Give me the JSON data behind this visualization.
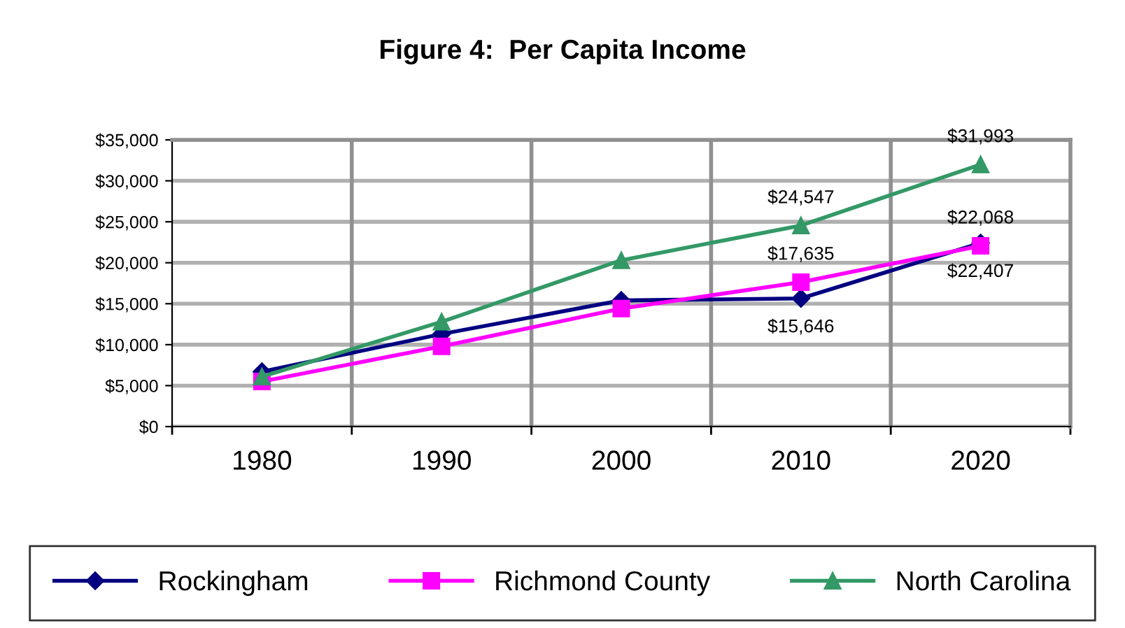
{
  "chart_data": {
    "type": "line",
    "title": "Figure 4:  Per Capita Income",
    "categories": [
      "1980",
      "1990",
      "2000",
      "2010",
      "2020"
    ],
    "series": [
      {
        "name": "Rockingham",
        "color": "#000080",
        "marker": "diamond",
        "values": [
          6700,
          11300,
          15400,
          15646,
          22407
        ],
        "value_labels": [
          null,
          null,
          null,
          "$15,646",
          "$22,407"
        ]
      },
      {
        "name": "Richmond County",
        "color": "#ff00ff",
        "marker": "square",
        "values": [
          5500,
          9800,
          14400,
          17635,
          22068
        ],
        "value_labels": [
          null,
          null,
          null,
          "$17,635",
          "$22,068"
        ]
      },
      {
        "name": "North Carolina",
        "color": "#339966",
        "marker": "triangle",
        "values": [
          6100,
          12800,
          20300,
          24547,
          31993
        ],
        "value_labels": [
          null,
          null,
          null,
          "$24,547",
          "$31,993"
        ]
      }
    ],
    "ylim": [
      0,
      35000
    ],
    "yticks": [
      {
        "value": 0,
        "label": "$0"
      },
      {
        "value": 5000,
        "label": "$5,000"
      },
      {
        "value": 10000,
        "label": "$10,000"
      },
      {
        "value": 15000,
        "label": "$15,000"
      },
      {
        "value": 20000,
        "label": "$20,000"
      },
      {
        "value": 25000,
        "label": "$25,000"
      },
      {
        "value": 30000,
        "label": "$30,000"
      },
      {
        "value": 35000,
        "label": "$35,000"
      }
    ],
    "grid": true,
    "legend": "bottom"
  }
}
